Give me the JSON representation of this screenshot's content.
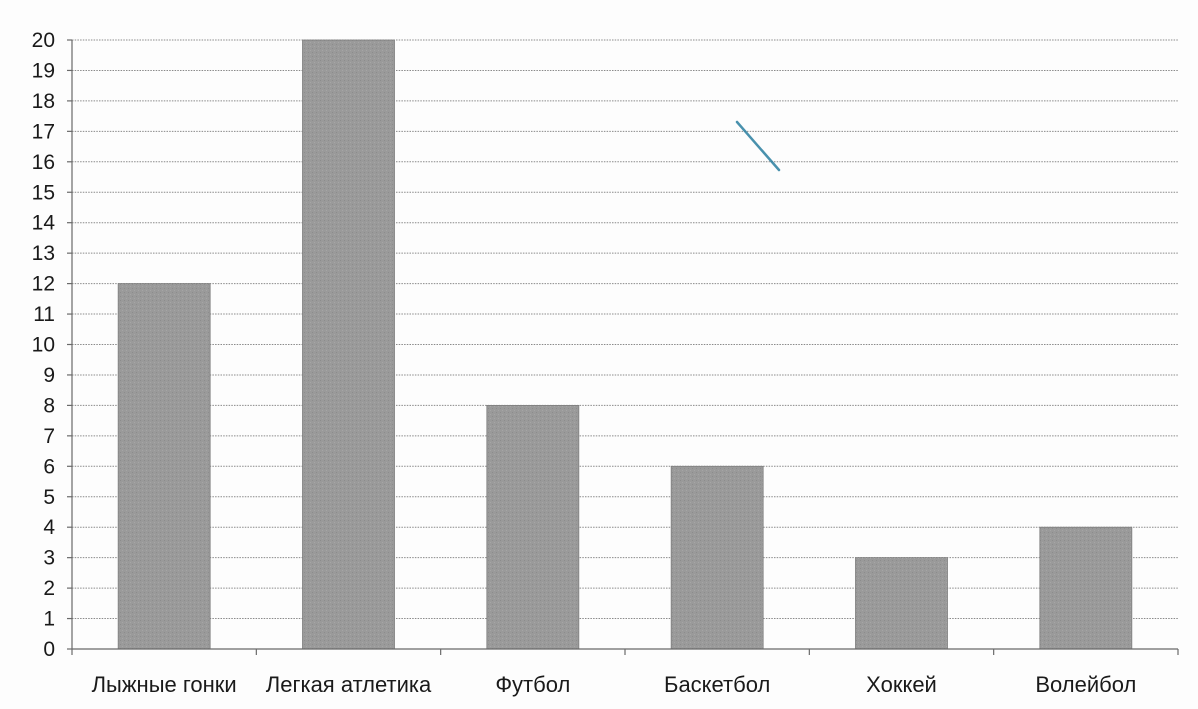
{
  "chart_data": {
    "type": "bar",
    "categories": [
      "Лыжные гонки",
      "Легкая атлетика",
      "Футбол",
      "Баскетбол",
      "Хоккей",
      "Волейбол"
    ],
    "values": [
      12,
      20,
      8,
      6,
      3,
      4
    ],
    "title": "",
    "xlabel": "",
    "ylabel": "",
    "ylim": [
      0,
      20
    ],
    "yticks": [
      "0",
      "1",
      "2",
      "3",
      "4",
      "5",
      "6",
      "7",
      "8",
      "9",
      "10",
      "11",
      "12",
      "13",
      "14",
      "15",
      "16",
      "17",
      "18",
      "19",
      "20"
    ],
    "grid": true,
    "legend": "none",
    "colors": {
      "bar": "#9a9a9a",
      "grid": "#8a8a8a",
      "axis": "#6a6a6a",
      "text": "#1a1a1a"
    }
  }
}
